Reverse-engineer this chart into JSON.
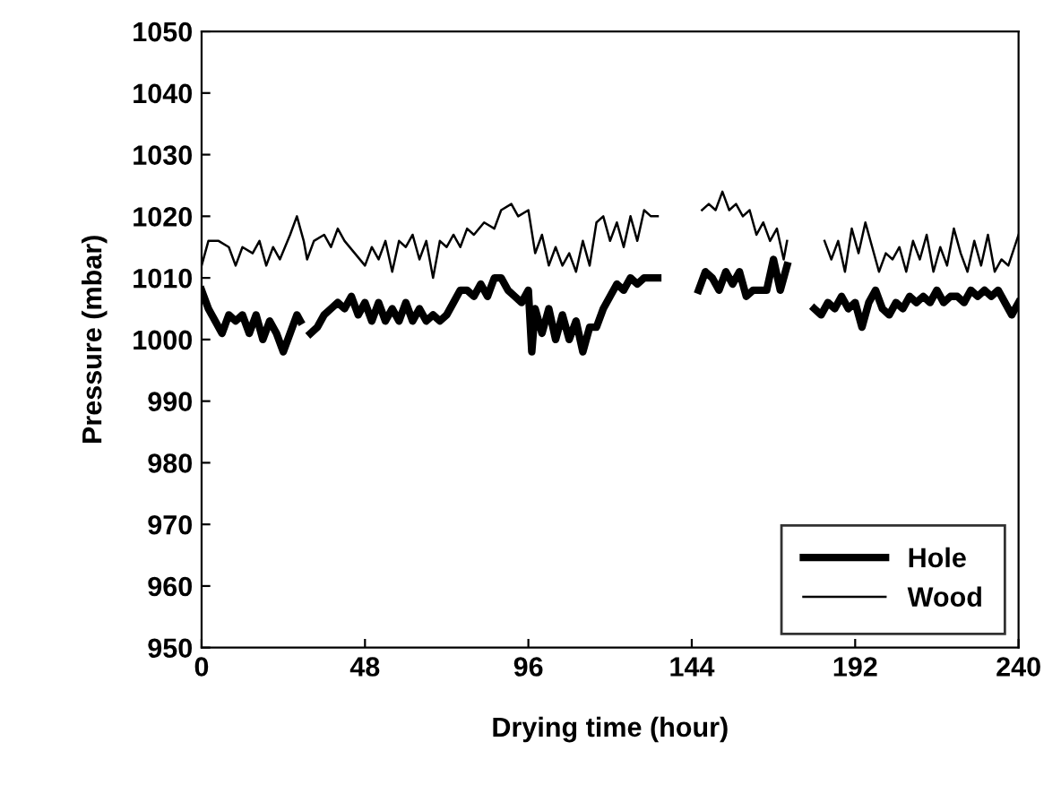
{
  "chart_data": {
    "type": "line",
    "xlabel": "Drying time (hour)",
    "ylabel": "Pressure (mbar)",
    "xlim": [
      0,
      240
    ],
    "xticks": [
      0,
      48,
      96,
      144,
      192,
      240
    ],
    "ylim": [
      950,
      1050
    ],
    "yticks": [
      950,
      960,
      970,
      980,
      990,
      1000,
      1010,
      1020,
      1030,
      1040,
      1050
    ],
    "grid": false,
    "legend": "bottom right",
    "marker": "none",
    "line_style": "solid",
    "series": [
      {
        "name": "Hole",
        "color": "#000000",
        "x": [
          0,
          2,
          4,
          6,
          8,
          10,
          12,
          14,
          16,
          18,
          20,
          22,
          24,
          26,
          28,
          29,
          30,
          32,
          34,
          36,
          38,
          40,
          42,
          44,
          46,
          48,
          50,
          52,
          54,
          56,
          58,
          60,
          62,
          64,
          66,
          68,
          70,
          72,
          74,
          76,
          78,
          80,
          82,
          84,
          86,
          88,
          90,
          92,
          94,
          96,
          97,
          98,
          100,
          102,
          104,
          106,
          108,
          110,
          112,
          114,
          116,
          118,
          120,
          122,
          124,
          126,
          128,
          130,
          132,
          134,
          140,
          146,
          148,
          150,
          152,
          154,
          156,
          158,
          160,
          162,
          164,
          166,
          168,
          170,
          172,
          176,
          180,
          182,
          184,
          186,
          188,
          190,
          192,
          194,
          196,
          198,
          200,
          202,
          204,
          206,
          208,
          210,
          212,
          214,
          216,
          218,
          220,
          222,
          224,
          226,
          228,
          230,
          232,
          234,
          236,
          238,
          240
        ],
        "values": [
          1008,
          1005,
          1003,
          1001,
          1004,
          1003,
          1004,
          1001,
          1004,
          1000,
          1003,
          1001,
          998,
          1001,
          1004,
          1003,
          null,
          1001,
          1002,
          1004,
          1005,
          1006,
          1005,
          1007,
          1004,
          1006,
          1003,
          1006,
          1003,
          1005,
          1003,
          1006,
          1003,
          1005,
          1003,
          1004,
          1003,
          1004,
          1006,
          1008,
          1008,
          1007,
          1009,
          1007,
          1010,
          1010,
          1008,
          1007,
          1006,
          1008,
          998,
          1005,
          1001,
          1005,
          1000,
          1004,
          1000,
          1003,
          998,
          1002,
          1002,
          1005,
          1007,
          1009,
          1008,
          1010,
          1009,
          1010,
          1010,
          1010,
          null,
          1008,
          1011,
          1010,
          1008,
          1011,
          1009,
          1011,
          1007,
          1008,
          1008,
          1008,
          1013,
          1008,
          1012,
          null,
          1005,
          1004,
          1006,
          1005,
          1007,
          1005,
          1006,
          1002,
          1006,
          1008,
          1005,
          1004,
          1006,
          1005,
          1007,
          1006,
          1007,
          1006,
          1008,
          1006,
          1007,
          1007,
          1006,
          1008,
          1007,
          1008,
          1007,
          1008,
          1006,
          1004,
          1006
        ]
      },
      {
        "name": "Wood",
        "color": "#000000",
        "x": [
          0,
          2,
          5,
          8,
          10,
          12,
          15,
          17,
          19,
          21,
          23,
          26,
          28,
          30,
          31,
          33,
          36,
          38,
          40,
          42,
          45,
          48,
          50,
          52,
          54,
          56,
          58,
          60,
          62,
          64,
          66,
          68,
          70,
          72,
          74,
          76,
          78,
          80,
          83,
          86,
          88,
          91,
          93,
          96,
          98,
          100,
          102,
          104,
          106,
          108,
          110,
          112,
          114,
          116,
          118,
          120,
          122,
          124,
          126,
          128,
          130,
          132,
          134,
          140,
          147,
          149,
          151,
          153,
          155,
          157,
          159,
          161,
          163,
          165,
          167,
          169,
          171,
          172,
          177,
          183,
          185,
          187,
          189,
          191,
          193,
          195,
          197,
          199,
          201,
          203,
          205,
          207,
          209,
          211,
          213,
          215,
          217,
          219,
          221,
          223,
          225,
          227,
          229,
          231,
          233,
          235,
          237,
          240
        ],
        "values": [
          1012,
          1016,
          1016,
          1015,
          1012,
          1015,
          1014,
          1016,
          1012,
          1015,
          1013,
          1017,
          1020,
          1016,
          1013,
          1016,
          1017,
          1015,
          1018,
          1016,
          1014,
          1012,
          1015,
          1013,
          1016,
          1011,
          1016,
          1015,
          1017,
          1013,
          1016,
          1010,
          1016,
          1015,
          1017,
          1015,
          1018,
          1017,
          1019,
          1018,
          1021,
          1022,
          1020,
          1021,
          1014,
          1017,
          1012,
          1015,
          1012,
          1014,
          1011,
          1016,
          1012,
          1019,
          1020,
          1016,
          1019,
          1015,
          1020,
          1016,
          1021,
          1020,
          1020,
          null,
          1021,
          1022,
          1021,
          1024,
          1021,
          1022,
          1020,
          1021,
          1017,
          1019,
          1016,
          1018,
          1013,
          1016,
          null,
          1016,
          1013,
          1016,
          1011,
          1018,
          1014,
          1019,
          1015,
          1011,
          1014,
          1013,
          1015,
          1011,
          1016,
          1013,
          1017,
          1011,
          1015,
          1012,
          1018,
          1014,
          1011,
          1016,
          1012,
          1017,
          1011,
          1013,
          1012,
          1017
        ]
      }
    ]
  }
}
